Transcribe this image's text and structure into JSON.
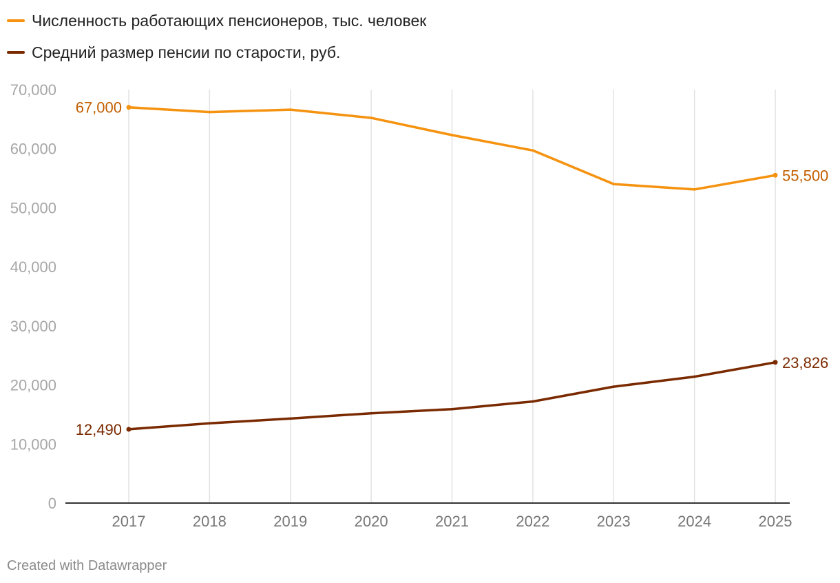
{
  "chart_data": {
    "type": "line",
    "x": [
      "2017",
      "2018",
      "2019",
      "2020",
      "2021",
      "2022",
      "2023",
      "2024",
      "2025"
    ],
    "ylim": [
      0,
      70000
    ],
    "yticks": [
      0,
      10000,
      20000,
      30000,
      40000,
      50000,
      60000,
      70000
    ],
    "ytick_labels": [
      "0",
      "10,000",
      "20,000",
      "30,000",
      "40,000",
      "50,000",
      "60,000",
      "70,000"
    ],
    "grid": true,
    "legend_position": "top-left",
    "series": [
      {
        "name": "Численность работающих пенсионеров, тыс. человек",
        "color": "#f5920f",
        "label_color": "#c25e00",
        "values": [
          67000,
          66200,
          66600,
          65200,
          62300,
          59700,
          54000,
          53100,
          55500
        ],
        "start_label": "67,000",
        "end_label": "55,500"
      },
      {
        "name": "Средний размер пенсии по старости, руб.",
        "color": "#7a2a00",
        "label_color": "#7a2a00",
        "values": [
          12490,
          13500,
          14300,
          15200,
          15900,
          17200,
          19700,
          21400,
          23826
        ],
        "start_label": "12,490",
        "end_label": "23,826"
      }
    ]
  },
  "footer": {
    "credit": "Created with Datawrapper"
  }
}
